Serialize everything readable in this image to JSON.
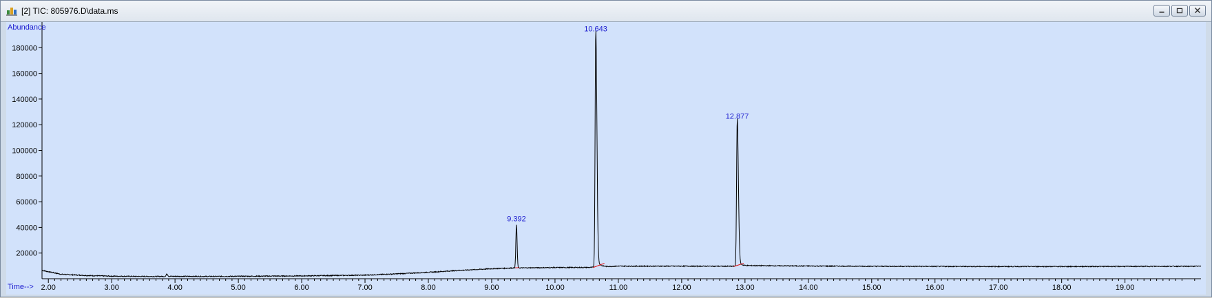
{
  "window": {
    "title": "[2] TIC: 805976.D\\data.ms",
    "icon": "chromatogram-icon"
  },
  "chart_data": {
    "type": "line",
    "ylabel": "Abundance",
    "xlabel": "Time-->",
    "xlim": [
      1.9,
      20.2
    ],
    "ylim": [
      0,
      200000
    ],
    "x_ticks": [
      2.0,
      3.0,
      4.0,
      5.0,
      6.0,
      7.0,
      8.0,
      9.0,
      10.0,
      11.0,
      12.0,
      13.0,
      14.0,
      15.0,
      16.0,
      17.0,
      18.0,
      19.0
    ],
    "x_tick_labels": [
      "2.00",
      "3.00",
      "4.00",
      "5.00",
      "6.00",
      "7.00",
      "8.00",
      "9.00",
      "10.00",
      "11.00",
      "12.00",
      "13.00",
      "14.00",
      "15.00",
      "16.00",
      "17.00",
      "18.00",
      "19.00"
    ],
    "y_ticks": [
      20000,
      40000,
      60000,
      80000,
      100000,
      120000,
      140000,
      160000,
      180000
    ],
    "y_tick_labels": [
      "20000",
      "40000",
      "60000",
      "80000",
      "100000",
      "120000",
      "140000",
      "160000",
      "180000"
    ],
    "peaks": [
      {
        "rt": 9.392,
        "label": "9.392",
        "apex": 42000,
        "base_start": 9.37,
        "base_end": 9.43,
        "base_y1": 8500,
        "base_y2": 8600
      },
      {
        "rt": 10.643,
        "label": "10.643",
        "apex": 190000,
        "base_start": 10.6,
        "base_end": 10.78,
        "base_y1": 8700,
        "base_y2": 12000
      },
      {
        "rt": 12.877,
        "label": "12.877",
        "apex": 122000,
        "base_start": 12.82,
        "base_end": 12.98,
        "base_y1": 9500,
        "base_y2": 12000
      }
    ],
    "baseline": [
      [
        1.9,
        6500
      ],
      [
        2.2,
        3500
      ],
      [
        2.6,
        2500
      ],
      [
        3.0,
        2000
      ],
      [
        3.5,
        1800
      ],
      [
        3.85,
        1800
      ],
      [
        3.87,
        4000
      ],
      [
        3.9,
        1900
      ],
      [
        4.5,
        1800
      ],
      [
        5.0,
        1900
      ],
      [
        6.0,
        2200
      ],
      [
        7.0,
        2800
      ],
      [
        7.5,
        3800
      ],
      [
        8.0,
        5000
      ],
      [
        8.5,
        6500
      ],
      [
        9.0,
        7800
      ],
      [
        9.35,
        8400
      ],
      [
        10.0,
        8700
      ],
      [
        10.55,
        8800
      ],
      [
        11.0,
        9800
      ],
      [
        12.0,
        9800
      ],
      [
        12.8,
        9700
      ],
      [
        13.1,
        10200
      ],
      [
        14.0,
        9900
      ],
      [
        15.0,
        9700
      ],
      [
        16.0,
        9600
      ],
      [
        17.0,
        9500
      ],
      [
        18.0,
        9500
      ],
      [
        19.0,
        9600
      ],
      [
        20.2,
        9700
      ]
    ]
  }
}
